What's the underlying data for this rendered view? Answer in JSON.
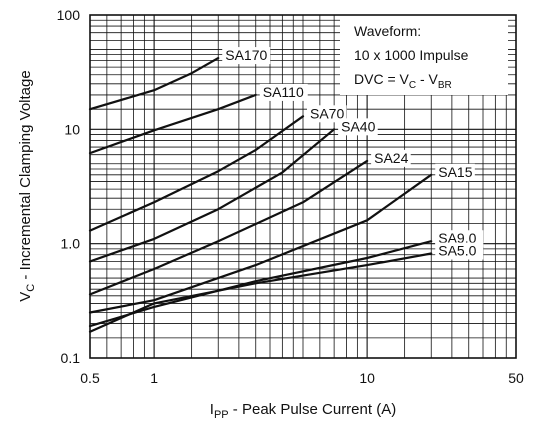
{
  "chart_data": {
    "type": "line",
    "xscale": "log",
    "yscale": "log",
    "xlim": [
      0.5,
      50
    ],
    "ylim": [
      0.1,
      100
    ],
    "grid": true,
    "x_ticks": [
      "0.5",
      "1",
      "10",
      "50"
    ],
    "y_ticks": [
      "100",
      "10",
      "1.0",
      "0.1"
    ],
    "x_tick_values": [
      0.5,
      1,
      10,
      50
    ],
    "y_tick_values": [
      100,
      10,
      1,
      0.1
    ],
    "annotation": {
      "line1": "Waveform:",
      "line2": "10 x 1000 Impulse",
      "line3_prefix": "DVC = V",
      "line3_sub1": "C",
      "line3_mid": " - V",
      "line3_sub2": "BR"
    },
    "series": [
      {
        "name": "SA170",
        "x": [
          0.5,
          1,
          1.5,
          2
        ],
        "y": [
          15,
          22,
          31,
          42
        ]
      },
      {
        "name": "SA110",
        "x": [
          0.5,
          1,
          2,
          3
        ],
        "y": [
          6.2,
          9.8,
          15,
          20
        ]
      },
      {
        "name": "SA70",
        "x": [
          0.5,
          1,
          2,
          3,
          5
        ],
        "y": [
          1.3,
          2.3,
          4.3,
          6.6,
          13
        ]
      },
      {
        "name": "SA40",
        "x": [
          0.5,
          1,
          2,
          4,
          7
        ],
        "y": [
          0.7,
          1.1,
          2,
          4.2,
          10
        ]
      },
      {
        "name": "SA24",
        "x": [
          0.5,
          1,
          2,
          5,
          10
        ],
        "y": [
          0.36,
          0.6,
          1.05,
          2.3,
          5.3
        ]
      },
      {
        "name": "SA15",
        "x": [
          0.5,
          1,
          3,
          10,
          20
        ],
        "y": [
          0.25,
          0.32,
          0.65,
          1.6,
          4
        ]
      },
      {
        "name": "SA9.0",
        "x": [
          0.5,
          1,
          3,
          10,
          20
        ],
        "y": [
          0.19,
          0.28,
          0.47,
          0.75,
          1.05
        ]
      },
      {
        "name": "SA5.0",
        "x": [
          0.5,
          1,
          3,
          10,
          20
        ],
        "y": [
          0.17,
          0.3,
          0.45,
          0.65,
          0.82
        ]
      }
    ],
    "xlabel": {
      "main": "I",
      "sub": "PP",
      "rest": " - Peak Pulse Current (A)"
    },
    "ylabel": {
      "main": "V",
      "sub": "C",
      "rest": " - Incremental Clamping Voltage"
    }
  }
}
